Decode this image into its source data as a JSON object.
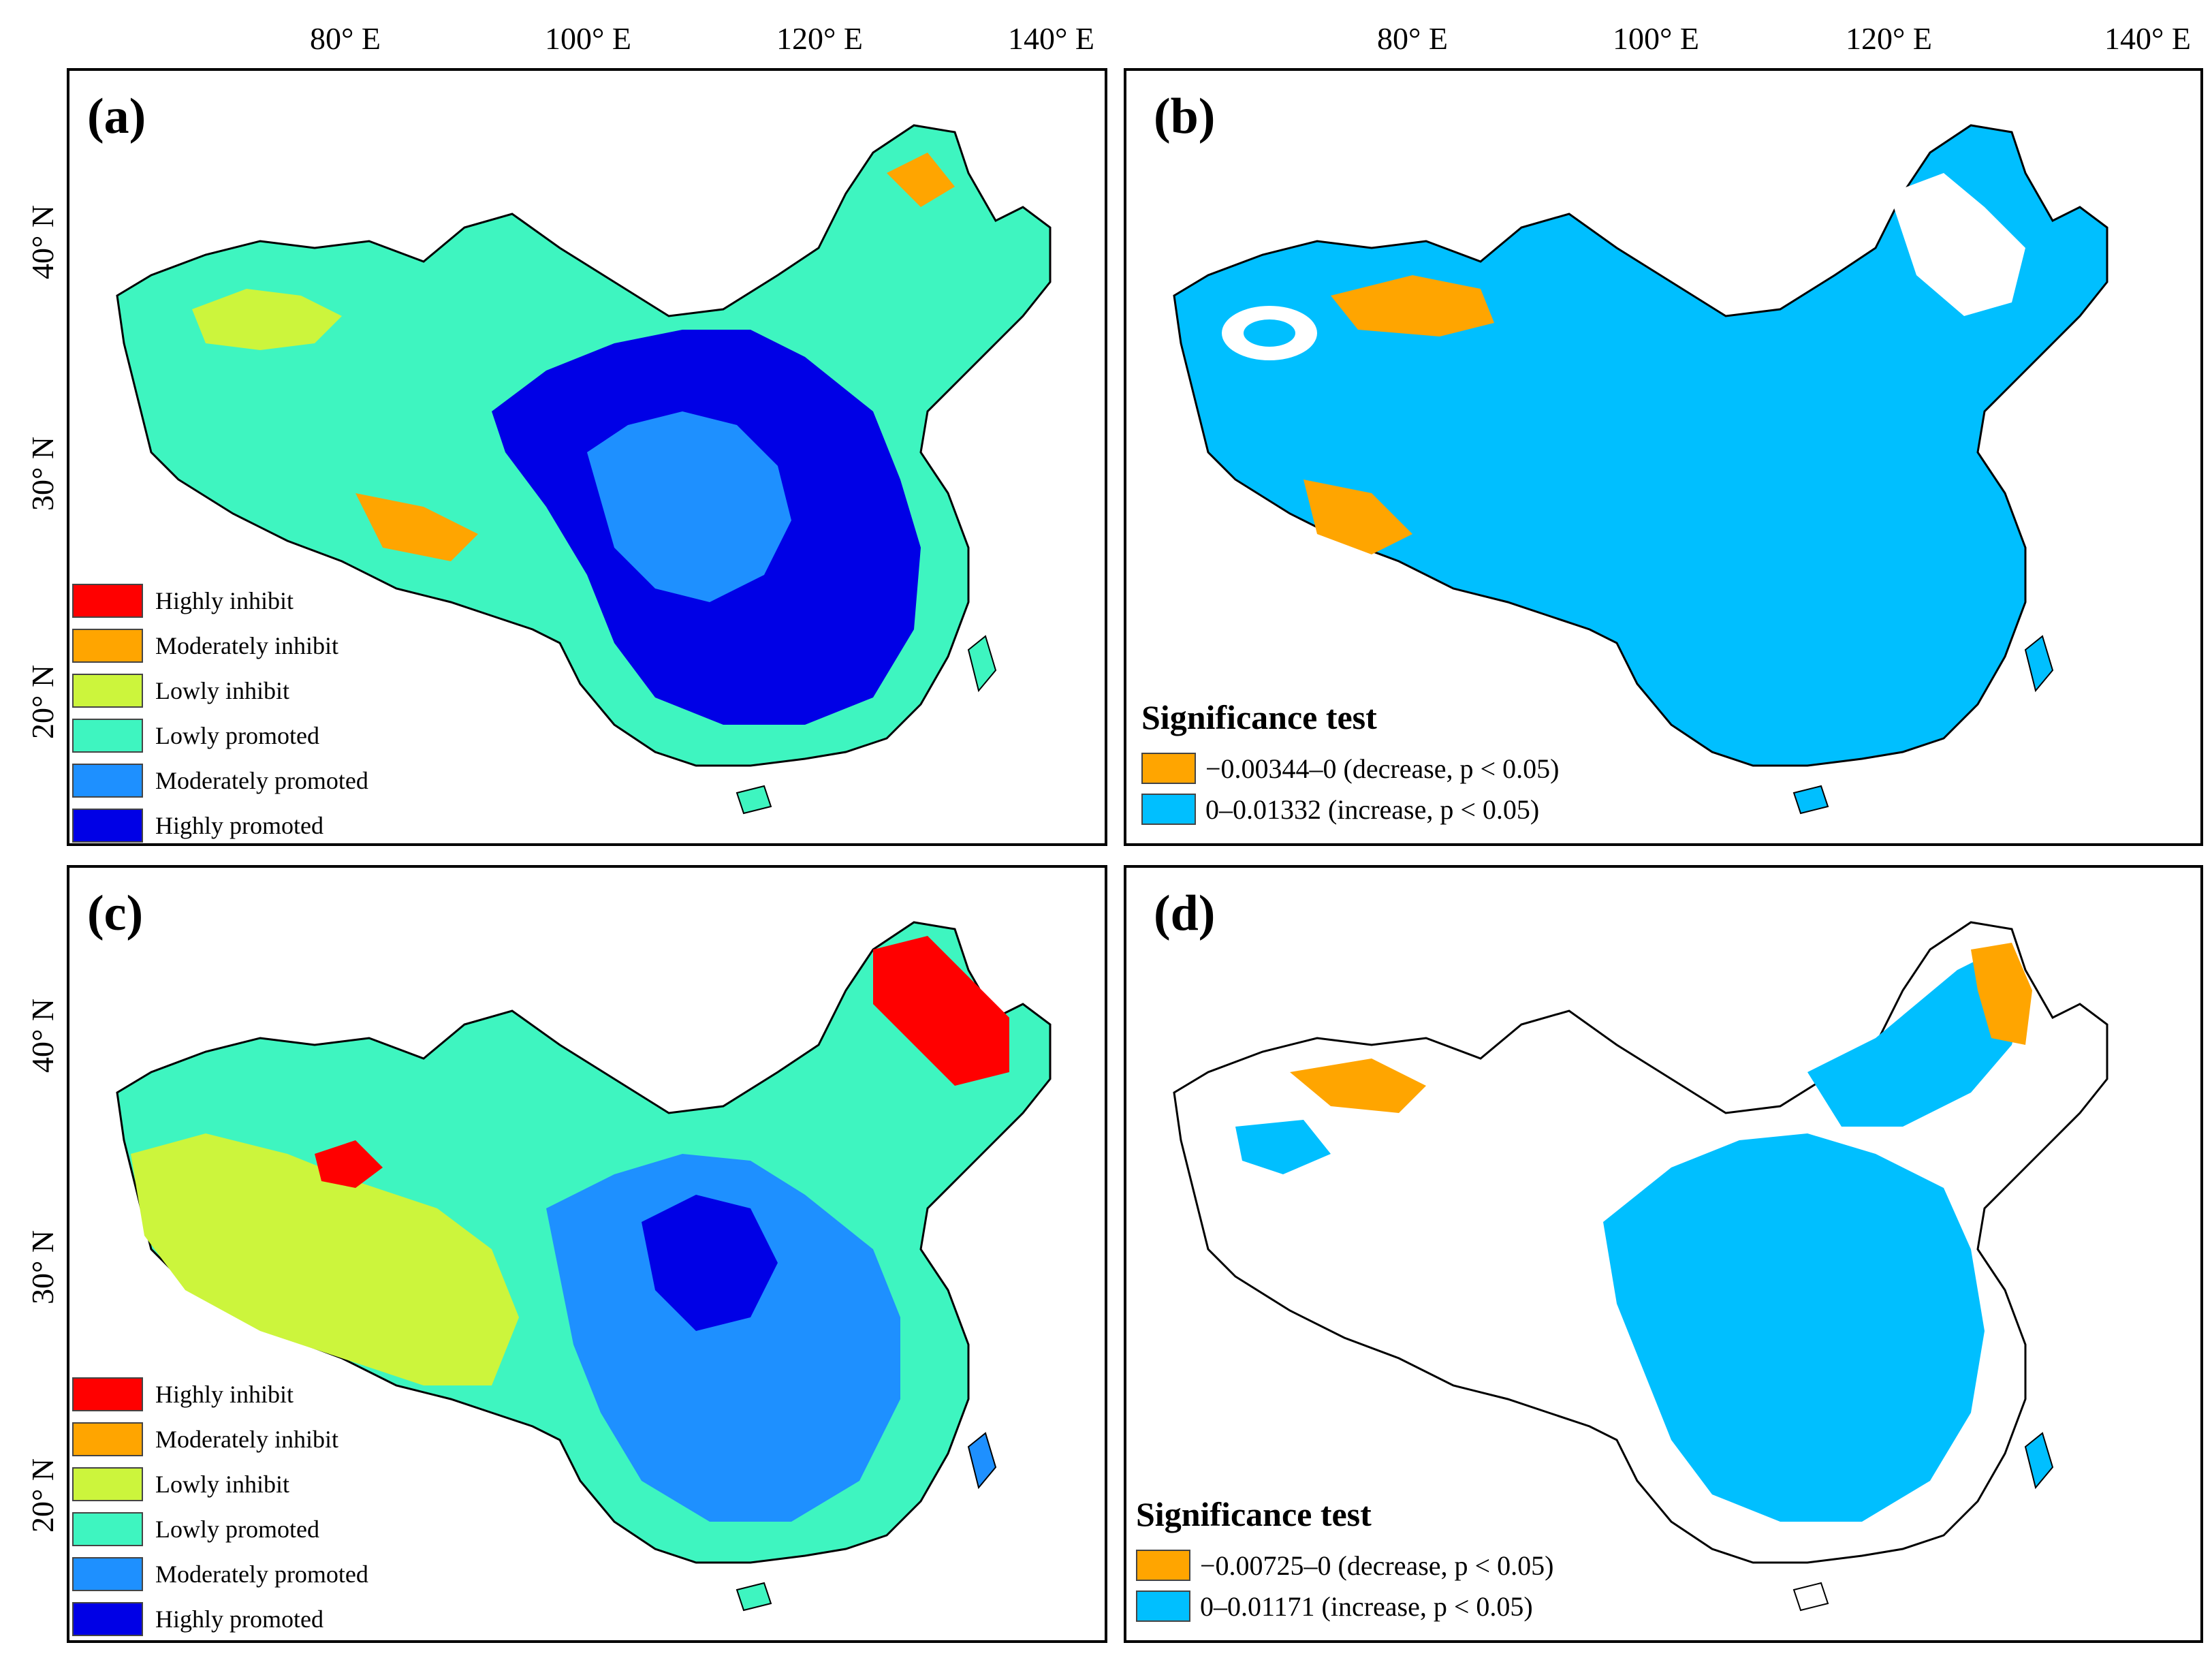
{
  "longitude_ticks": [
    "80° E",
    "100° E",
    "120° E",
    "140° E"
  ],
  "latitude_ticks": [
    "40° N",
    "30° N",
    "20° N"
  ],
  "panels": {
    "a": {
      "label": "(a)",
      "legend": [
        {
          "label": "Highly inhibit",
          "color": "#ff0000"
        },
        {
          "label": "Moderately inhibit",
          "color": "#ffa500"
        },
        {
          "label": "Lowly  inhibit",
          "color": "#ccf53c"
        },
        {
          "label": "Lowly promoted",
          "color": "#3ef5c0"
        },
        {
          "label": "Moderately promoted",
          "color": "#1e90ff"
        },
        {
          "label": "Highly promoted",
          "color": "#0000e6"
        }
      ]
    },
    "b": {
      "label": "(b)",
      "legend_title": "Significance test",
      "legend": [
        {
          "label": "−0.00344–0 (decrease, p < 0.05)",
          "color": "#ffa500"
        },
        {
          "label": "0–0.01332 (increase, p < 0.05)",
          "color": "#00bfff"
        }
      ]
    },
    "c": {
      "label": "(c)",
      "legend": [
        {
          "label": "Highly inhibit",
          "color": "#ff0000"
        },
        {
          "label": "Moderately inhibit",
          "color": "#ffa500"
        },
        {
          "label": "Lowly  inhibit",
          "color": "#ccf53c"
        },
        {
          "label": "Lowly promoted",
          "color": "#3ef5c0"
        },
        {
          "label": "Moderately promoted",
          "color": "#1e90ff"
        },
        {
          "label": "Highly promoted",
          "color": "#0000e6"
        }
      ]
    },
    "d": {
      "label": "(d)",
      "legend_title": "Significance test",
      "legend": [
        {
          "label": "−0.00725–0 (decrease, p < 0.05)",
          "color": "#ffa500"
        },
        {
          "label": "0–0.01171 (increase, p < 0.05)",
          "color": "#00bfff"
        }
      ]
    }
  },
  "colors": {
    "land_base": "#3ef5c0",
    "sig_base": "#00bfff",
    "border": "#000000"
  }
}
